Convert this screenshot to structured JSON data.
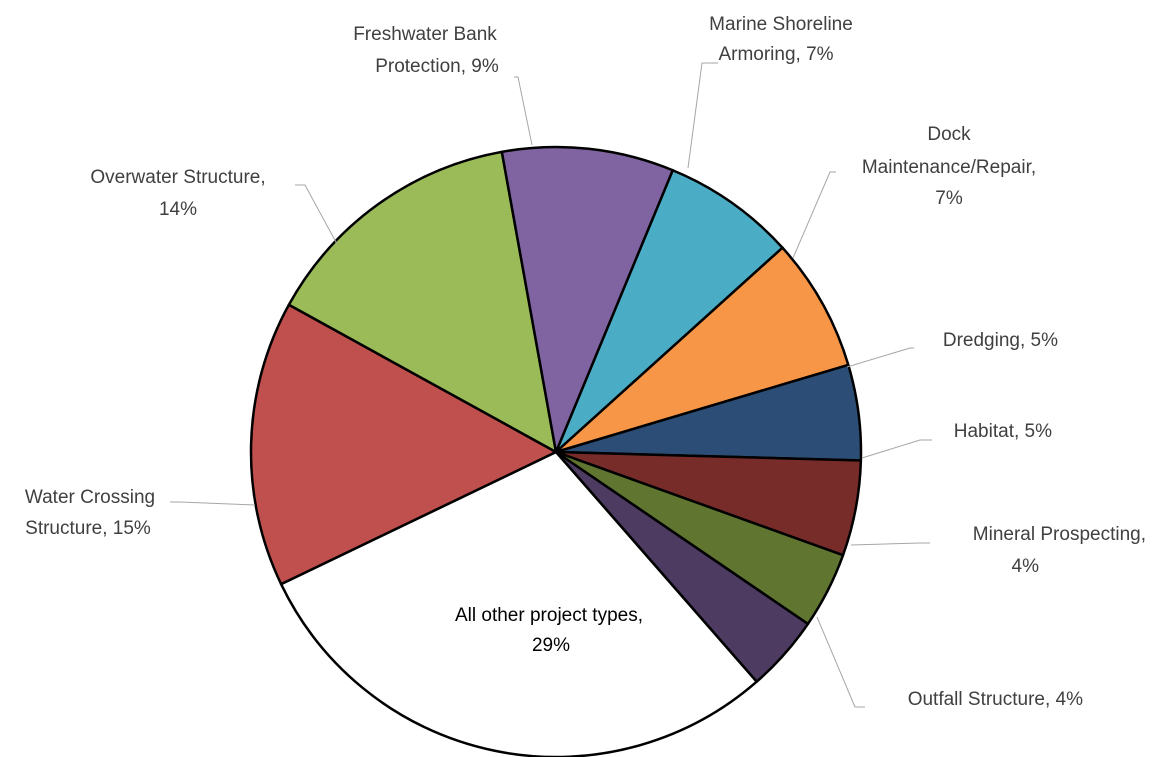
{
  "chart_data": {
    "type": "pie",
    "title": "",
    "slices": [
      {
        "label_lines": [
          "Marine Shoreline",
          "Armoring, 7%"
        ],
        "name": "Marine Shoreline Armoring",
        "value": 7,
        "color": "#4BACC6"
      },
      {
        "label_lines": [
          "Dock",
          "Maintenance/Repair,",
          "7%"
        ],
        "name": "Dock Maintenance/Repair",
        "value": 7,
        "color": "#F79646"
      },
      {
        "label_lines": [
          "Dredging, 5%"
        ],
        "name": "Dredging",
        "value": 5,
        "color": "#2C4D75"
      },
      {
        "label_lines": [
          "Habitat, 5%"
        ],
        "name": "Habitat",
        "value": 5,
        "color": "#772C2A"
      },
      {
        "label_lines": [
          "Mineral Prospecting,",
          "4%"
        ],
        "name": "Mineral Prospecting",
        "value": 4,
        "color": "#5F7530"
      },
      {
        "label_lines": [
          "Outfall Structure, 4%"
        ],
        "name": "Outfall Structure",
        "value": 4,
        "color": "#4D3B62"
      },
      {
        "label_lines": [
          "All other project types,",
          "29%"
        ],
        "name": "All other project types",
        "value": 29,
        "color": "#FFFFFF"
      },
      {
        "label_lines": [
          "Water Crossing",
          "Structure, 15%"
        ],
        "name": "Water Crossing Structure",
        "value": 15,
        "color": "#C0504D"
      },
      {
        "label_lines": [
          "Overwater Structure,",
          "14%"
        ],
        "name": "Overwater Structure",
        "value": 14,
        "color": "#9BBB59"
      },
      {
        "label_lines": [
          "Freshwater Bank",
          "Protection, 9%"
        ],
        "name": "Freshwater Bank Protection",
        "value": 9,
        "color": "#8064A2"
      }
    ],
    "outline_color": "#000000",
    "leader_color": "#A6A6A6"
  }
}
